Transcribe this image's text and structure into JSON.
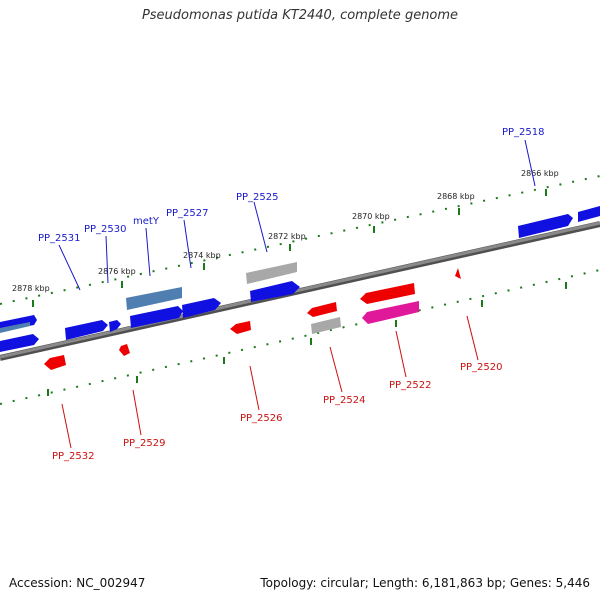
{
  "title": "Pseudomonas putida KT2440, complete genome",
  "footer": {
    "accession": "Accession: NC_002947",
    "summary": "Topology: circular; Length: 6,181,863 bp; Genes: 5,446"
  },
  "colors": {
    "plus_gene": "#1010e0",
    "minus_gene": "#ee0000",
    "gray_gene": "#a8a8a8",
    "steel_gene": "#4f7fb0",
    "magenta_gene": "#e0189a",
    "backbone": "#808080",
    "tick": "#1a7a1a",
    "plus_label": "#1a1acc",
    "minus_label": "#cc1111"
  },
  "scale_labels": [
    "2866 kbp",
    "2868 kbp",
    "2870 kbp",
    "2872 kbp",
    "2874 kbp",
    "2876 kbp",
    "2878 kbp"
  ],
  "plus_labels": [
    "PP_2518",
    "PP_2525",
    "PP_2527",
    "metY",
    "PP_2530",
    "PP_2531"
  ],
  "minus_labels": [
    "PP_2520",
    "PP_2522",
    "PP_2524",
    "PP_2526",
    "PP_2529",
    "PP_2532"
  ]
}
